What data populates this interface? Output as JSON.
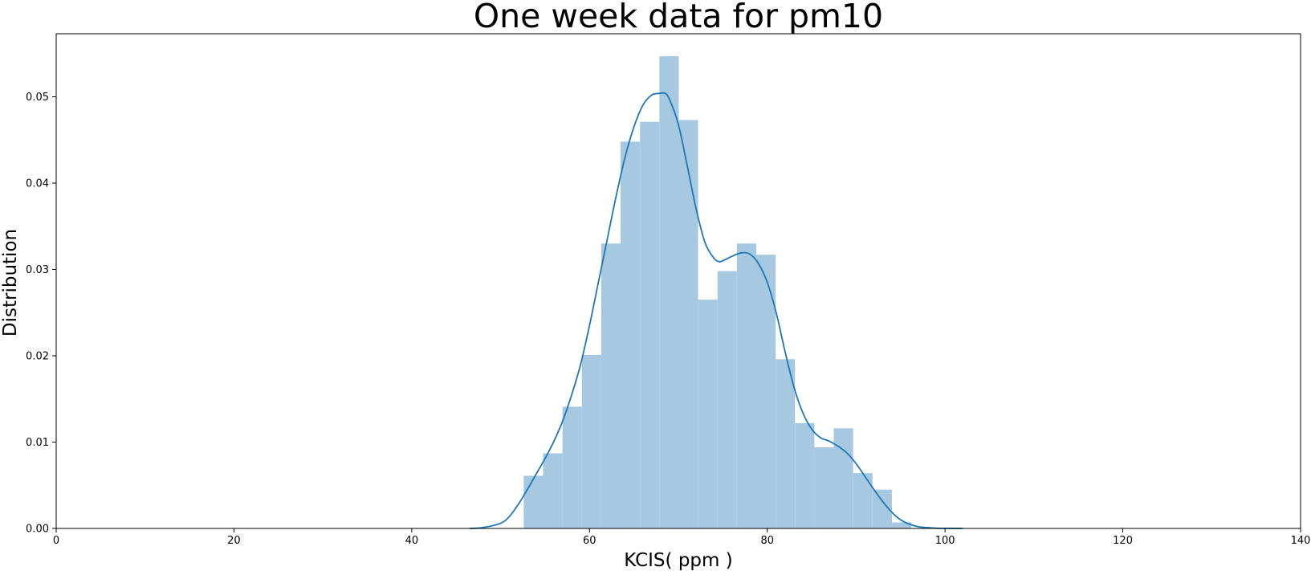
{
  "chart_data": {
    "type": "bar",
    "title": "One week data for pm10",
    "xlabel": "KCIS( ppm )",
    "ylabel": "Distribution",
    "xlim": [
      0,
      140
    ],
    "ylim": [
      0,
      0.0573
    ],
    "xticks": [
      0,
      20,
      40,
      60,
      80,
      100,
      120,
      140
    ],
    "xtick_labels": [
      "0",
      "20",
      "40",
      "60",
      "80",
      "100",
      "120",
      "140"
    ],
    "yticks": [
      0,
      0.01,
      0.02,
      0.03,
      0.04,
      0.05
    ],
    "ytick_labels": [
      "0.00",
      "0.01",
      "0.02",
      "0.03",
      "0.04",
      "0.05"
    ],
    "grid": false,
    "histogram": {
      "bin_start": 52.6,
      "bin_width": 2.18,
      "values": [
        0.0061,
        0.0087,
        0.0141,
        0.0201,
        0.033,
        0.0448,
        0.0471,
        0.0547,
        0.0473,
        0.0265,
        0.0298,
        0.033,
        0.0317,
        0.0196,
        0.0122,
        0.0094,
        0.0116,
        0.0064,
        0.0045,
        0.0007
      ],
      "color": "#a6c8e0"
    },
    "kde": {
      "x": [
        46.5,
        48,
        50,
        51,
        52,
        53,
        54,
        55,
        56,
        57,
        58,
        59,
        60,
        61,
        62,
        63,
        64,
        65,
        66,
        67,
        68,
        68.5,
        69,
        70,
        71,
        72,
        73,
        74,
        74.6,
        75,
        76,
        77,
        78,
        79,
        80,
        81,
        82,
        83,
        84,
        85,
        86,
        87,
        88,
        89,
        90,
        91,
        92,
        93,
        94,
        95,
        96,
        97,
        98,
        99,
        100,
        102
      ],
      "y": [
        0.0,
        0.0001,
        0.0006,
        0.0014,
        0.0028,
        0.0045,
        0.0063,
        0.0081,
        0.0101,
        0.0125,
        0.0155,
        0.019,
        0.0235,
        0.0285,
        0.0335,
        0.0385,
        0.043,
        0.0465,
        0.049,
        0.0502,
        0.0504,
        0.0504,
        0.0497,
        0.0468,
        0.042,
        0.037,
        0.0331,
        0.0313,
        0.0309,
        0.031,
        0.0315,
        0.0319,
        0.0318,
        0.0307,
        0.0285,
        0.025,
        0.0205,
        0.0164,
        0.0134,
        0.0115,
        0.0105,
        0.0101,
        0.0095,
        0.0087,
        0.0075,
        0.006,
        0.0045,
        0.0031,
        0.0019,
        0.001,
        0.0005,
        0.0002,
        0.0001,
        3e-05,
        1e-05,
        0.0
      ],
      "color": "#1f77b4"
    }
  }
}
